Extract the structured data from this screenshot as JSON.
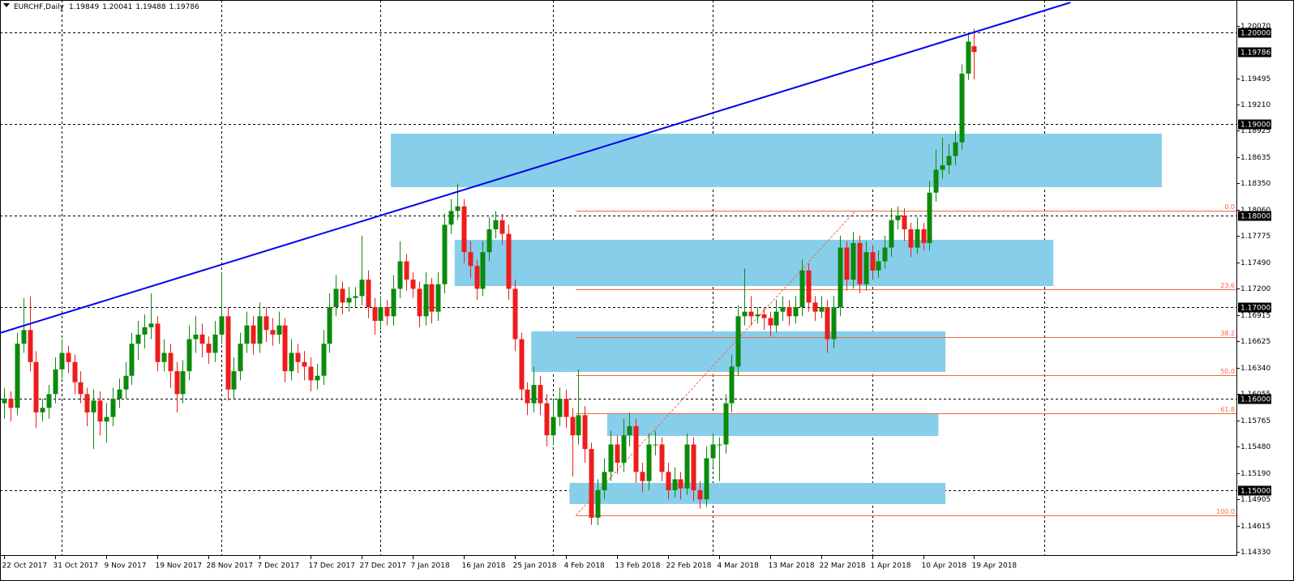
{
  "chart_data": {
    "type": "candlestick",
    "symbol": "EURCHF,Daily",
    "up_color": "#0b8a0b",
    "down_color": "#ee1c1c",
    "candles": [
      [
        1.1595,
        1.1612,
        1.1578,
        1.16
      ],
      [
        1.16,
        1.1608,
        1.1575,
        1.159
      ],
      [
        1.159,
        1.1672,
        1.1582,
        1.166
      ],
      [
        1.166,
        1.171,
        1.165,
        1.1675
      ],
      [
        1.1675,
        1.1712,
        1.163,
        1.164
      ],
      [
        1.164,
        1.1652,
        1.1568,
        1.1585
      ],
      [
        1.1585,
        1.16,
        1.1575,
        1.159
      ],
      [
        1.159,
        1.1615,
        1.1578,
        1.1605
      ],
      [
        1.1605,
        1.1645,
        1.1595,
        1.1632
      ],
      [
        1.1632,
        1.1665,
        1.1622,
        1.165
      ],
      [
        1.165,
        1.1658,
        1.1628,
        1.164
      ],
      [
        1.164,
        1.1648,
        1.1605,
        1.1618
      ],
      [
        1.1618,
        1.163,
        1.1595,
        1.1605
      ],
      [
        1.1605,
        1.1612,
        1.157,
        1.1585
      ],
      [
        1.1585,
        1.161,
        1.1545,
        1.1598
      ],
      [
        1.1598,
        1.1608,
        1.156,
        1.1575
      ],
      [
        1.1575,
        1.1595,
        1.1552,
        1.158
      ],
      [
        1.158,
        1.1612,
        1.157,
        1.16
      ],
      [
        1.16,
        1.1622,
        1.159,
        1.161
      ],
      [
        1.161,
        1.164,
        1.16,
        1.1625
      ],
      [
        1.1625,
        1.1672,
        1.1615,
        1.166
      ],
      [
        1.166,
        1.1685,
        1.1642,
        1.167
      ],
      [
        1.167,
        1.1692,
        1.1655,
        1.1678
      ],
      [
        1.1678,
        1.1715,
        1.1665,
        1.1682
      ],
      [
        1.1682,
        1.169,
        1.163,
        1.164
      ],
      [
        1.164,
        1.1665,
        1.163,
        1.165
      ],
      [
        1.165,
        1.166,
        1.1612,
        1.163
      ],
      [
        1.163,
        1.164,
        1.1585,
        1.1605
      ],
      [
        1.1605,
        1.1642,
        1.1595,
        1.163
      ],
      [
        1.163,
        1.168,
        1.162,
        1.1665
      ],
      [
        1.1665,
        1.169,
        1.165,
        1.167
      ],
      [
        1.167,
        1.1682,
        1.1645,
        1.166
      ],
      [
        1.166,
        1.1668,
        1.1638,
        1.165
      ],
      [
        1.165,
        1.1685,
        1.164,
        1.167
      ],
      [
        1.167,
        1.1738,
        1.166,
        1.169
      ],
      [
        1.169,
        1.17,
        1.1598,
        1.161
      ],
      [
        1.161,
        1.1645,
        1.16,
        1.163
      ],
      [
        1.163,
        1.1672,
        1.162,
        1.166
      ],
      [
        1.166,
        1.1695,
        1.165,
        1.168
      ],
      [
        1.168,
        1.169,
        1.1648,
        1.166
      ],
      [
        1.166,
        1.1705,
        1.165,
        1.169
      ],
      [
        1.169,
        1.17,
        1.1662,
        1.1675
      ],
      [
        1.1675,
        1.1688,
        1.1658,
        1.167
      ],
      [
        1.167,
        1.1695,
        1.166,
        1.168
      ],
      [
        1.168,
        1.1688,
        1.1618,
        1.163
      ],
      [
        1.163,
        1.1665,
        1.162,
        1.165
      ],
      [
        1.165,
        1.166,
        1.1628,
        1.164
      ],
      [
        1.164,
        1.1652,
        1.162,
        1.1635
      ],
      [
        1.1635,
        1.1645,
        1.1608,
        1.162
      ],
      [
        1.162,
        1.1638,
        1.161,
        1.1625
      ],
      [
        1.1625,
        1.1675,
        1.1615,
        1.166
      ],
      [
        1.166,
        1.1715,
        1.165,
        1.17
      ],
      [
        1.17,
        1.1735,
        1.169,
        1.172
      ],
      [
        1.172,
        1.1728,
        1.1692,
        1.1705
      ],
      [
        1.1705,
        1.1722,
        1.1695,
        1.171
      ],
      [
        1.171,
        1.1722,
        1.17,
        1.1712
      ],
      [
        1.1712,
        1.1778,
        1.1702,
        1.173
      ],
      [
        1.173,
        1.174,
        1.1688,
        1.17
      ],
      [
        1.17,
        1.171,
        1.167,
        1.1685
      ],
      [
        1.1685,
        1.1712,
        1.1675,
        1.17
      ],
      [
        1.17,
        1.1708,
        1.168,
        1.169
      ],
      [
        1.169,
        1.1735,
        1.168,
        1.172
      ],
      [
        1.172,
        1.1772,
        1.171,
        1.175
      ],
      [
        1.175,
        1.1758,
        1.1718,
        1.173
      ],
      [
        1.173,
        1.1738,
        1.171,
        1.172
      ],
      [
        1.172,
        1.1728,
        1.1678,
        1.169
      ],
      [
        1.169,
        1.1738,
        1.168,
        1.1725
      ],
      [
        1.1725,
        1.1732,
        1.1682,
        1.1695
      ],
      [
        1.1695,
        1.1738,
        1.1685,
        1.1725
      ],
      [
        1.1725,
        1.1802,
        1.1715,
        1.179
      ],
      [
        1.179,
        1.1818,
        1.178,
        1.1805
      ],
      [
        1.1805,
        1.1835,
        1.1795,
        1.181
      ],
      [
        1.181,
        1.1818,
        1.1748,
        1.176
      ],
      [
        1.176,
        1.1772,
        1.1732,
        1.1745
      ],
      [
        1.1745,
        1.1752,
        1.1708,
        1.172
      ],
      [
        1.172,
        1.1772,
        1.1712,
        1.176
      ],
      [
        1.176,
        1.1798,
        1.175,
        1.1785
      ],
      [
        1.1785,
        1.1805,
        1.1775,
        1.1795
      ],
      [
        1.1795,
        1.1802,
        1.1768,
        1.178
      ],
      [
        1.178,
        1.179,
        1.1708,
        1.172
      ],
      [
        1.172,
        1.173,
        1.1652,
        1.1665
      ],
      [
        1.1665,
        1.1672,
        1.1598,
        1.161
      ],
      [
        1.161,
        1.1618,
        1.1582,
        1.1595
      ],
      [
        1.1595,
        1.1635,
        1.1585,
        1.1615
      ],
      [
        1.1615,
        1.1625,
        1.1582,
        1.1595
      ],
      [
        1.1595,
        1.1605,
        1.1548,
        1.156
      ],
      [
        1.156,
        1.1598,
        1.155,
        1.158
      ],
      [
        1.158,
        1.1612,
        1.157,
        1.16
      ],
      [
        1.16,
        1.161,
        1.1568,
        1.158
      ],
      [
        1.158,
        1.159,
        1.1515,
        1.156
      ],
      [
        1.156,
        1.1632,
        1.155,
        1.1582
      ],
      [
        1.1582,
        1.1592,
        1.153,
        1.1545
      ],
      [
        1.1545,
        1.1552,
        1.1462,
        1.147
      ],
      [
        1.147,
        1.1512,
        1.1462,
        1.15
      ],
      [
        1.15,
        1.1535,
        1.149,
        1.152
      ],
      [
        1.152,
        1.1565,
        1.151,
        1.155
      ],
      [
        1.155,
        1.156,
        1.1518,
        1.153
      ],
      [
        1.153,
        1.1578,
        1.152,
        1.156
      ],
      [
        1.156,
        1.1585,
        1.1548,
        1.157
      ],
      [
        1.157,
        1.1578,
        1.1508,
        1.152
      ],
      [
        1.152,
        1.153,
        1.1498,
        1.151
      ],
      [
        1.151,
        1.1562,
        1.15,
        1.155
      ],
      [
        1.155,
        1.1565,
        1.1538,
        1.155
      ],
      [
        1.155,
        1.1558,
        1.151,
        1.152
      ],
      [
        1.152,
        1.153,
        1.149,
        1.15
      ],
      [
        1.15,
        1.1525,
        1.1492,
        1.1512
      ],
      [
        1.1512,
        1.152,
        1.149,
        1.1502
      ],
      [
        1.1502,
        1.1562,
        1.1495,
        1.155
      ],
      [
        1.155,
        1.1558,
        1.1488,
        1.15
      ],
      [
        1.15,
        1.151,
        1.148,
        1.149
      ],
      [
        1.149,
        1.1548,
        1.1482,
        1.1535
      ],
      [
        1.1535,
        1.1562,
        1.1525,
        1.155
      ],
      [
        1.155,
        1.1558,
        1.151,
        1.155
      ],
      [
        1.155,
        1.1605,
        1.154,
        1.1595
      ],
      [
        1.1595,
        1.1648,
        1.1585,
        1.1635
      ],
      [
        1.1635,
        1.1702,
        1.1625,
        1.169
      ],
      [
        1.169,
        1.1742,
        1.168,
        1.1695
      ],
      [
        1.1695,
        1.1712,
        1.168,
        1.169
      ],
      [
        1.169,
        1.17,
        1.1682,
        1.1692
      ],
      [
        1.1692,
        1.17,
        1.1675,
        1.1688
      ],
      [
        1.1688,
        1.1695,
        1.1668,
        1.168
      ],
      [
        1.168,
        1.1708,
        1.1672,
        1.1695
      ],
      [
        1.1695,
        1.1712,
        1.1685,
        1.17
      ],
      [
        1.17,
        1.1708,
        1.168,
        1.169
      ],
      [
        1.169,
        1.1712,
        1.1682,
        1.17
      ],
      [
        1.17,
        1.1752,
        1.169,
        1.174
      ],
      [
        1.174,
        1.1748,
        1.1695,
        1.1705
      ],
      [
        1.1705,
        1.1712,
        1.1685,
        1.1695
      ],
      [
        1.1695,
        1.1712,
        1.1688,
        1.17
      ],
      [
        1.17,
        1.1708,
        1.165,
        1.1665
      ],
      [
        1.1665,
        1.1712,
        1.1655,
        1.17
      ],
      [
        1.17,
        1.1778,
        1.169,
        1.1765
      ],
      [
        1.1765,
        1.1772,
        1.1718,
        1.173
      ],
      [
        1.173,
        1.1782,
        1.172,
        1.177
      ],
      [
        1.177,
        1.1778,
        1.1715,
        1.1725
      ],
      [
        1.1725,
        1.1772,
        1.1718,
        1.176
      ],
      [
        1.176,
        1.1768,
        1.173,
        1.174
      ],
      [
        1.174,
        1.1762,
        1.1732,
        1.175
      ],
      [
        1.175,
        1.1778,
        1.1742,
        1.1765
      ],
      [
        1.1765,
        1.1808,
        1.1755,
        1.1795
      ],
      [
        1.1795,
        1.181,
        1.1785,
        1.18
      ],
      [
        1.18,
        1.1808,
        1.1772,
        1.1785
      ],
      [
        1.1785,
        1.1792,
        1.1755,
        1.1765
      ],
      [
        1.1765,
        1.1798,
        1.1758,
        1.1785
      ],
      [
        1.1785,
        1.1792,
        1.1762,
        1.177
      ],
      [
        1.177,
        1.1838,
        1.1762,
        1.1825
      ],
      [
        1.1825,
        1.1872,
        1.1815,
        1.185
      ],
      [
        1.185,
        1.1885,
        1.184,
        1.1855
      ],
      [
        1.1855,
        1.1878,
        1.1845,
        1.1865
      ],
      [
        1.1865,
        1.1892,
        1.1855,
        1.188
      ],
      [
        1.188,
        1.1965,
        1.1872,
        1.1955
      ],
      [
        1.1955,
        1.2,
        1.1948,
        1.199
      ],
      [
        1.19849,
        1.20041,
        1.19488,
        1.19786
      ]
    ],
    "xlim": [
      -0.64,
      193.1
    ],
    "ylim": [
      1.14292,
      1.20354
    ],
    "xticks": [
      {
        "value": 0,
        "label": "22 Oct 2017"
      },
      {
        "value": 8,
        "label": "31 Oct 2017"
      },
      {
        "value": 16,
        "label": "9 Nov 2017"
      },
      {
        "value": 24,
        "label": "19 Nov 2017"
      },
      {
        "value": 32,
        "label": "28 Nov 2017"
      },
      {
        "value": 40,
        "label": "7 Dec 2017"
      },
      {
        "value": 48,
        "label": "17 Dec 2017"
      },
      {
        "value": 56,
        "label": "27 Dec 2017"
      },
      {
        "value": 64,
        "label": "7 Jan 2018"
      },
      {
        "value": 72,
        "label": "16 Jan 2018"
      },
      {
        "value": 80,
        "label": "25 Jan 2018"
      },
      {
        "value": 88,
        "label": "4 Feb 2018"
      },
      {
        "value": 96,
        "label": "13 Feb 2018"
      },
      {
        "value": 104,
        "label": "22 Feb 2018"
      },
      {
        "value": 112,
        "label": "4 Mar 2018"
      },
      {
        "value": 120,
        "label": "13 Mar 2018"
      },
      {
        "value": 128,
        "label": "22 Mar 2018"
      },
      {
        "value": 136,
        "label": "1 Apr 2018"
      },
      {
        "value": 144,
        "label": "10 Apr 2018"
      },
      {
        "value": 152,
        "label": "19 Apr 2018"
      }
    ],
    "yticks": [
      {
        "value": 1.2007,
        "label": "1.20070"
      },
      {
        "value": 1.19495,
        "label": "1.19495"
      },
      {
        "value": 1.1921,
        "label": "1.19210"
      },
      {
        "value": 1.18925,
        "label": "1.18925"
      },
      {
        "value": 1.18635,
        "label": "1.18635"
      },
      {
        "value": 1.1835,
        "label": "1.18350"
      },
      {
        "value": 1.1806,
        "label": "1.18060"
      },
      {
        "value": 1.17775,
        "label": "1.17775"
      },
      {
        "value": 1.1749,
        "label": "1.17490"
      },
      {
        "value": 1.172,
        "label": "1.17200"
      },
      {
        "value": 1.16915,
        "label": "1.16915"
      },
      {
        "value": 1.16625,
        "label": "1.16625"
      },
      {
        "value": 1.1634,
        "label": "1.16340"
      },
      {
        "value": 1.16055,
        "label": "1.16055"
      },
      {
        "value": 1.15765,
        "label": "1.15765"
      },
      {
        "value": 1.1548,
        "label": "1.15480"
      },
      {
        "value": 1.1519,
        "label": "1.15190"
      },
      {
        "value": 1.14905,
        "label": "1.14905"
      },
      {
        "value": 1.14615,
        "label": "1.14615"
      },
      {
        "value": 1.1433,
        "label": "1.14330"
      }
    ],
    "xgrid": [
      9,
      34,
      59,
      86,
      111,
      136,
      163
    ],
    "hlines": [
      {
        "value": 1.2,
        "label": "1.20000"
      },
      {
        "value": 1.19,
        "label": "1.19000"
      },
      {
        "value": 1.18,
        "label": "1.18000"
      },
      {
        "value": 1.17,
        "label": "1.17000"
      },
      {
        "value": 1.16,
        "label": "1.16000"
      },
      {
        "value": 1.15,
        "label": "1.15000"
      }
    ],
    "trendline": {
      "color": "#0000ee",
      "x": [
        -0.64,
        167.1
      ],
      "y": [
        1.16717,
        1.20327
      ]
    },
    "zone_color": "#87ceeb",
    "zones": [
      {
        "x": [
          60.6,
          181.4
        ],
        "y": [
          1.1831,
          1.18894
        ]
      },
      {
        "x": [
          70.6,
          164.4
        ],
        "y": [
          1.1723,
          1.17735
        ]
      },
      {
        "x": [
          82.6,
          147.5
        ],
        "y": [
          1.16292,
          1.16735
        ]
      },
      {
        "x": [
          94.5,
          146.4
        ],
        "y": [
          1.15593,
          1.15832
        ]
      },
      {
        "x": [
          88.6,
          147.5
        ],
        "y": [
          1.1485,
          1.1508
        ]
      }
    ],
    "fibo": {
      "color": "#f26a3a",
      "x": [
        89.6,
        193.1
      ],
      "diagonal": {
        "x": [
          89.6,
          133.4
        ],
        "y": [
          1.14726,
          1.1805
        ]
      },
      "levels": [
        {
          "value": 1.1805,
          "label": "0.0"
        },
        {
          "value": 1.17195,
          "label": "23.6"
        },
        {
          "value": 1.16673,
          "label": "38.2"
        },
        {
          "value": 1.16257,
          "label": "50.0"
        },
        {
          "value": 1.15841,
          "label": "61.8"
        },
        {
          "value": 1.14726,
          "label": "100.0"
        }
      ]
    }
  }
}
